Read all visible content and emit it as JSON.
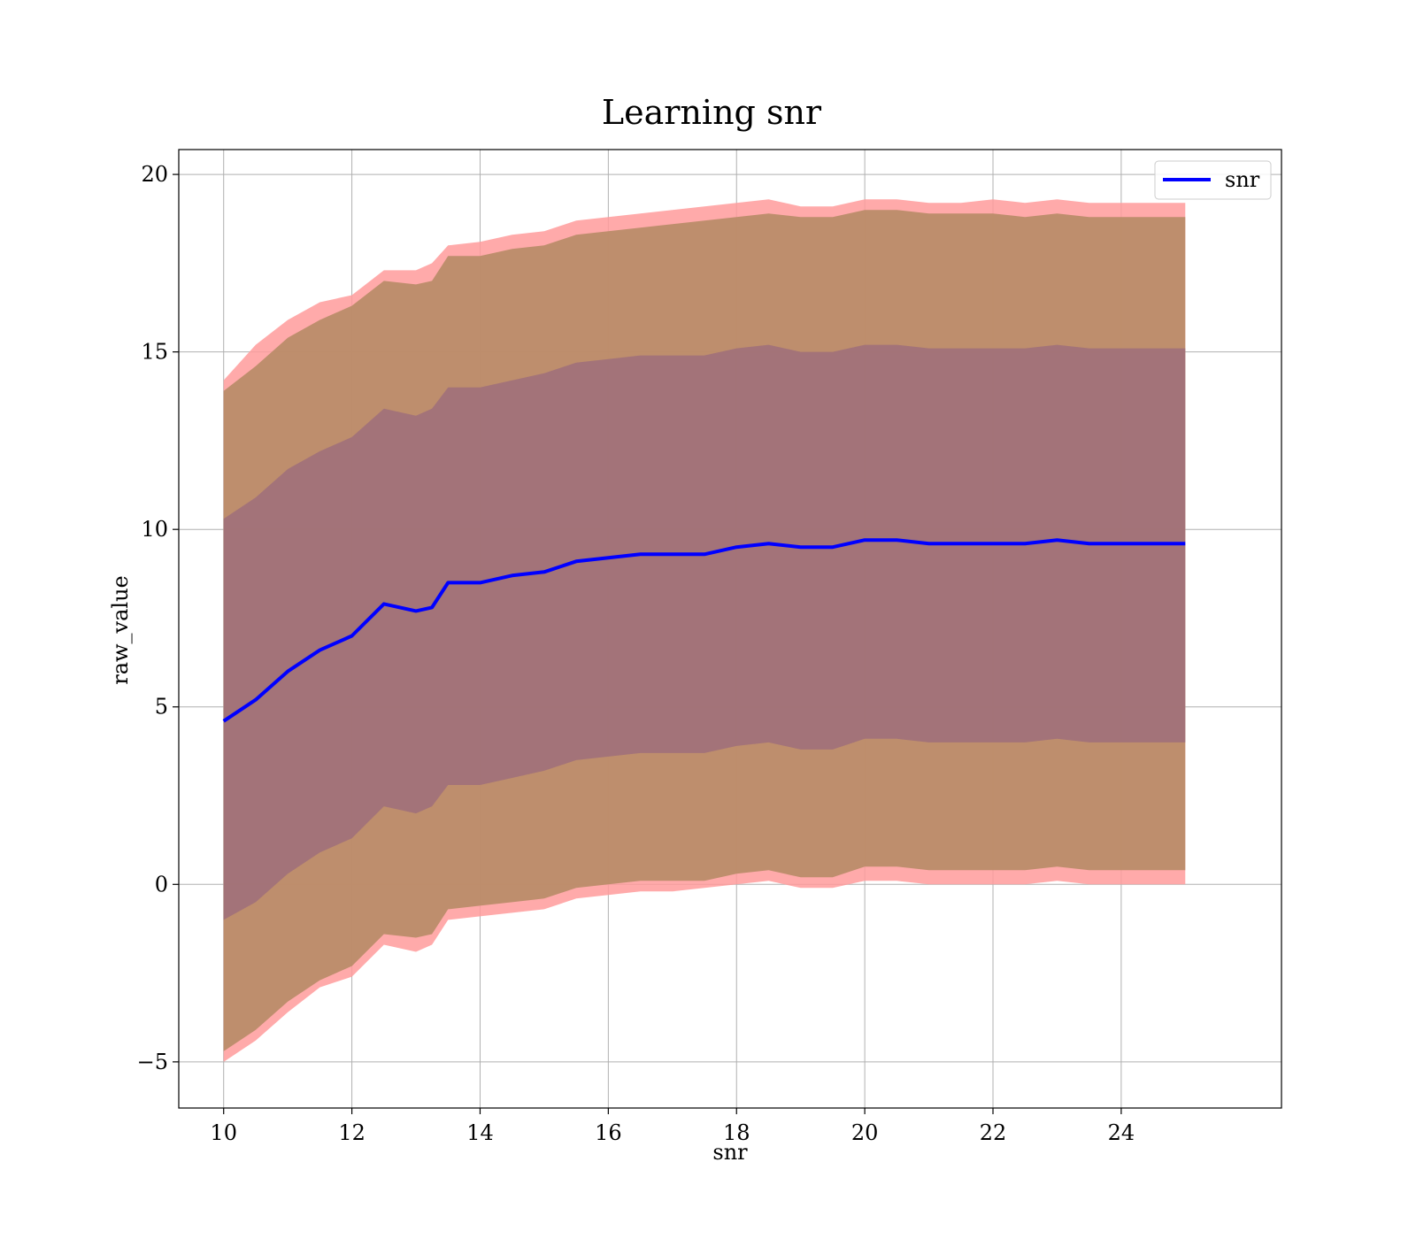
{
  "chart_data": {
    "type": "area",
    "title": "Learning snr",
    "xlabel": "snr",
    "ylabel": "raw_value",
    "xlim": [
      9.3,
      26.5
    ],
    "ylim": [
      -6.3,
      20.7
    ],
    "x_ticks": [
      10,
      12,
      14,
      16,
      18,
      20,
      22,
      24
    ],
    "x_tick_labels": [
      "10",
      "12",
      "14",
      "16",
      "18",
      "20",
      "22",
      "24"
    ],
    "y_ticks": [
      -5,
      0,
      5,
      10,
      15,
      20
    ],
    "y_tick_labels": [
      "−5",
      "0",
      "5",
      "10",
      "15",
      "20"
    ],
    "grid": true,
    "legend": {
      "position": "top-right",
      "entries": [
        "snr"
      ]
    },
    "colors": {
      "line": "#0000ff",
      "band_outer": "#ff9b9b",
      "band_middle": "#b78b66",
      "band_inner": "#a0707a",
      "grid": "#b0b0b0"
    },
    "x": [
      10.0,
      10.5,
      11.0,
      11.5,
      12.0,
      12.5,
      13.0,
      13.25,
      13.5,
      14.0,
      14.5,
      15.0,
      15.5,
      16.0,
      16.5,
      17.0,
      17.5,
      18.0,
      18.5,
      19.0,
      19.5,
      20.0,
      20.5,
      21.0,
      21.5,
      22.0,
      22.5,
      23.0,
      23.5,
      24.0,
      24.5,
      25.0
    ],
    "series": [
      {
        "name": "snr",
        "values": [
          4.6,
          5.2,
          6.0,
          6.6,
          7.0,
          7.9,
          7.7,
          7.8,
          8.5,
          8.5,
          8.7,
          8.8,
          9.1,
          9.2,
          9.3,
          9.3,
          9.3,
          9.5,
          9.6,
          9.5,
          9.5,
          9.7,
          9.7,
          9.6,
          9.6,
          9.6,
          9.6,
          9.7,
          9.6,
          9.6,
          9.6,
          9.6
        ]
      }
    ],
    "bands": [
      {
        "upper": [
          14.2,
          15.2,
          15.9,
          16.4,
          16.6,
          17.3,
          17.3,
          17.5,
          18.0,
          18.1,
          18.3,
          18.4,
          18.7,
          18.8,
          18.9,
          19.0,
          19.1,
          19.2,
          19.3,
          19.1,
          19.1,
          19.3,
          19.3,
          19.2,
          19.2,
          19.3,
          19.2,
          19.3,
          19.2,
          19.2,
          19.2,
          19.2
        ],
        "lower": [
          -5.0,
          -4.4,
          -3.6,
          -2.9,
          -2.6,
          -1.7,
          -1.9,
          -1.7,
          -1.0,
          -0.9,
          -0.8,
          -0.7,
          -0.4,
          -0.3,
          -0.2,
          -0.2,
          -0.1,
          0.0,
          0.1,
          -0.1,
          -0.1,
          0.1,
          0.1,
          0.0,
          0.0,
          0.0,
          0.0,
          0.1,
          0.0,
          0.0,
          0.0,
          0.0
        ]
      },
      {
        "upper": [
          13.9,
          14.6,
          15.4,
          15.9,
          16.3,
          17.0,
          16.9,
          17.0,
          17.7,
          17.7,
          17.9,
          18.0,
          18.3,
          18.4,
          18.5,
          18.6,
          18.7,
          18.8,
          18.9,
          18.8,
          18.8,
          19.0,
          19.0,
          18.9,
          18.9,
          18.9,
          18.8,
          18.9,
          18.8,
          18.8,
          18.8,
          18.8
        ],
        "lower": [
          -4.7,
          -4.1,
          -3.3,
          -2.7,
          -2.3,
          -1.4,
          -1.5,
          -1.4,
          -0.7,
          -0.6,
          -0.5,
          -0.4,
          -0.1,
          0.0,
          0.1,
          0.1,
          0.1,
          0.3,
          0.4,
          0.2,
          0.2,
          0.5,
          0.5,
          0.4,
          0.4,
          0.4,
          0.4,
          0.5,
          0.4,
          0.4,
          0.4,
          0.4
        ]
      },
      {
        "upper": [
          10.3,
          10.9,
          11.7,
          12.2,
          12.6,
          13.4,
          13.2,
          13.4,
          14.0,
          14.0,
          14.2,
          14.4,
          14.7,
          14.8,
          14.9,
          14.9,
          14.9,
          15.1,
          15.2,
          15.0,
          15.0,
          15.2,
          15.2,
          15.1,
          15.1,
          15.1,
          15.1,
          15.2,
          15.1,
          15.1,
          15.1,
          15.1
        ],
        "lower": [
          -1.0,
          -0.5,
          0.3,
          0.9,
          1.3,
          2.2,
          2.0,
          2.2,
          2.8,
          2.8,
          3.0,
          3.2,
          3.5,
          3.6,
          3.7,
          3.7,
          3.7,
          3.9,
          4.0,
          3.8,
          3.8,
          4.1,
          4.1,
          4.0,
          4.0,
          4.0,
          4.0,
          4.1,
          4.0,
          4.0,
          4.0,
          4.0
        ]
      }
    ]
  }
}
